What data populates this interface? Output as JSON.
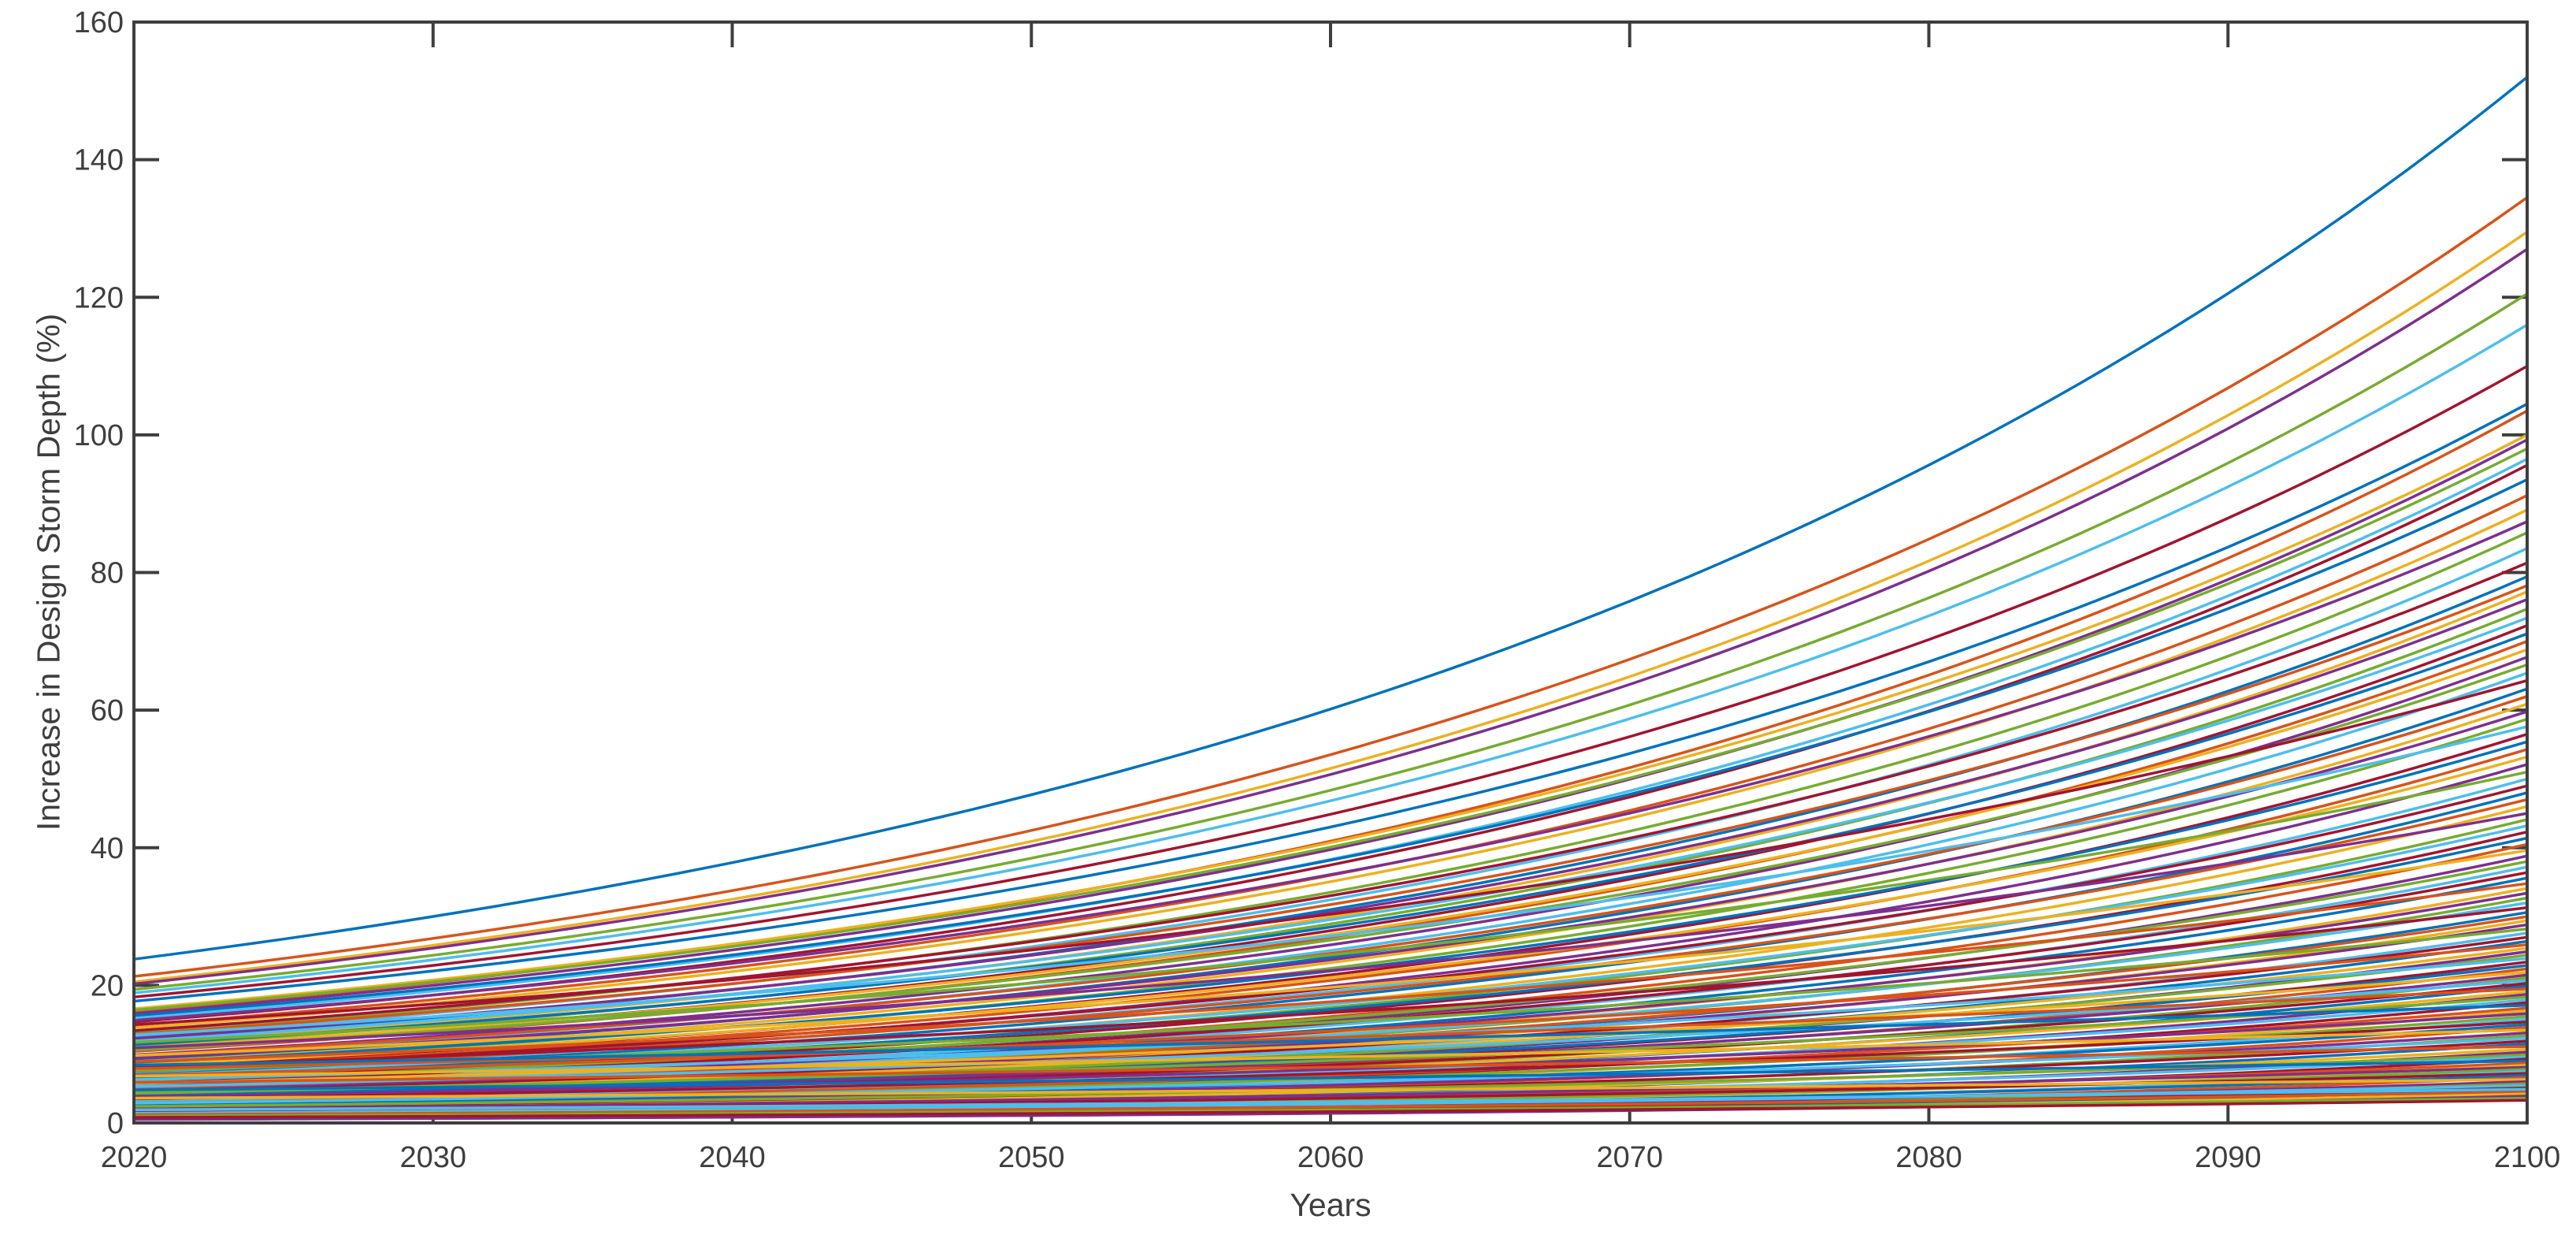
{
  "page": {
    "background": "#ffffff"
  },
  "chart_data": {
    "type": "line",
    "title": "",
    "xlabel": "Years",
    "ylabel": "Increase in Design Storm Depth (%)",
    "xlim": [
      2020,
      2100
    ],
    "ylim": [
      0,
      160
    ],
    "xticks": [
      2020,
      2030,
      2040,
      2050,
      2060,
      2070,
      2080,
      2090,
      2100
    ],
    "yticks": [
      0,
      20,
      40,
      60,
      80,
      100,
      120,
      140,
      160
    ],
    "grid": false,
    "legend": "none",
    "axis_color": "#3e3e3e",
    "tick_label_color": "#3e3e3e",
    "tick_direction": "in",
    "box": true,
    "palette": [
      "#0072BD",
      "#D95319",
      "#EDB120",
      "#7E2F8E",
      "#77AC30",
      "#4DBEEE",
      "#A2142F"
    ],
    "color_rule": "series cycle through palette in order",
    "line_model": "exponential growth interpolated between value at 2020 and value at 2100",
    "series_format": [
      "y2020",
      "y2100"
    ],
    "series": [
      [
        23.8,
        152.0
      ],
      [
        21.3,
        134.5
      ],
      [
        20.5,
        129.5
      ],
      [
        20.2,
        127.0
      ],
      [
        19.4,
        120.5
      ],
      [
        18.9,
        116.0
      ],
      [
        18.3,
        110.0
      ],
      [
        17.7,
        104.5
      ],
      [
        16.2,
        103.5
      ],
      [
        16.6,
        100.0
      ],
      [
        15.9,
        99.3
      ],
      [
        16.4,
        98.0
      ],
      [
        15.2,
        96.5
      ],
      [
        14.7,
        95.6
      ],
      [
        15.6,
        93.5
      ],
      [
        14.2,
        91.2
      ],
      [
        13.8,
        89.1
      ],
      [
        14.9,
        87.4
      ],
      [
        13.1,
        85.8
      ],
      [
        12.6,
        83.5
      ],
      [
        13.4,
        81.4
      ],
      [
        12.1,
        79.4
      ],
      [
        12.9,
        78.1
      ],
      [
        11.6,
        77.2
      ],
      [
        12.3,
        76.1
      ],
      [
        11.2,
        74.7
      ],
      [
        11.9,
        73.4
      ],
      [
        10.8,
        72.3
      ],
      [
        11.4,
        71.1
      ],
      [
        10.4,
        70.0
      ],
      [
        10.9,
        68.8
      ],
      [
        9.9,
        67.7
      ],
      [
        10.6,
        66.6
      ],
      [
        9.6,
        65.4
      ],
      [
        14.3,
        64.3
      ],
      [
        9.2,
        63.1
      ],
      [
        9.8,
        62.0
      ],
      [
        8.9,
        60.9
      ],
      [
        9.4,
        59.8
      ],
      [
        8.6,
        58.7
      ],
      [
        12.8,
        57.6
      ],
      [
        8.2,
        56.5
      ],
      [
        8.8,
        55.4
      ],
      [
        7.9,
        54.3
      ],
      [
        8.4,
        53.2
      ],
      [
        7.6,
        52.1
      ],
      [
        11.7,
        51.0
      ],
      [
        7.3,
        50.0
      ],
      [
        7.8,
        49.0
      ],
      [
        7.0,
        48.0
      ],
      [
        7.5,
        47.0
      ],
      [
        6.7,
        46.0
      ],
      [
        10.9,
        45.0
      ],
      [
        6.4,
        44.1
      ],
      [
        6.9,
        43.2
      ],
      [
        6.2,
        42.3
      ],
      [
        6.6,
        41.4
      ],
      [
        5.9,
        40.5
      ],
      [
        9.8,
        39.6
      ],
      [
        5.7,
        38.8
      ],
      [
        6.1,
        38.0
      ],
      [
        5.4,
        37.2
      ],
      [
        5.8,
        36.4
      ],
      [
        5.2,
        35.6
      ],
      [
        8.9,
        34.8
      ],
      [
        5.0,
        34.1
      ],
      [
        5.3,
        33.4
      ],
      [
        4.8,
        32.7
      ],
      [
        5.1,
        32.0
      ],
      [
        8.2,
        31.3
      ],
      [
        4.6,
        30.6
      ],
      [
        4.9,
        30.0
      ],
      [
        4.4,
        29.4
      ],
      [
        4.7,
        28.8
      ],
      [
        7.6,
        28.2
      ],
      [
        4.2,
        27.6
      ],
      [
        4.5,
        27.0
      ],
      [
        4.0,
        26.4
      ],
      [
        6.9,
        25.9
      ],
      [
        4.3,
        25.4
      ],
      [
        3.8,
        24.9
      ],
      [
        4.1,
        24.4
      ],
      [
        6.3,
        23.9
      ],
      [
        3.6,
        23.4
      ],
      [
        3.9,
        22.9
      ],
      [
        3.4,
        22.4
      ],
      [
        5.8,
        21.9
      ],
      [
        3.7,
        21.5
      ],
      [
        3.2,
        21.1
      ],
      [
        5.3,
        20.7
      ],
      [
        3.5,
        20.3
      ],
      [
        3.0,
        19.9
      ],
      [
        7.9,
        19.5
      ],
      [
        3.3,
        19.1
      ],
      [
        2.8,
        18.7
      ],
      [
        4.5,
        18.3
      ],
      [
        3.1,
        17.9
      ],
      [
        2.6,
        17.5
      ],
      [
        8.4,
        17.1
      ],
      [
        2.9,
        16.7
      ],
      [
        2.4,
        16.3
      ],
      [
        3.8,
        15.9
      ],
      [
        2.7,
        15.5
      ],
      [
        2.2,
        15.1
      ],
      [
        3.5,
        14.7
      ],
      [
        2.5,
        14.3
      ],
      [
        2.0,
        13.9
      ],
      [
        6.8,
        13.5
      ],
      [
        2.3,
        13.1
      ],
      [
        1.8,
        12.7
      ],
      [
        2.9,
        12.3
      ],
      [
        2.1,
        11.9
      ],
      [
        1.6,
        11.5
      ],
      [
        5.9,
        11.1
      ],
      [
        1.9,
        10.7
      ],
      [
        1.4,
        10.3
      ],
      [
        2.4,
        9.9
      ],
      [
        1.7,
        9.6
      ],
      [
        1.2,
        9.3
      ],
      [
        4.8,
        9.0
      ],
      [
        1.5,
        8.7
      ],
      [
        1.0,
        8.4
      ],
      [
        2.0,
        8.1
      ],
      [
        1.3,
        7.8
      ],
      [
        0.9,
        7.5
      ],
      [
        1.8,
        7.2
      ],
      [
        1.1,
        6.9
      ],
      [
        0.8,
        6.6
      ],
      [
        3.6,
        6.3
      ],
      [
        0.9,
        6.0
      ],
      [
        0.7,
        5.7
      ],
      [
        1.4,
        5.4
      ],
      [
        0.8,
        5.1
      ],
      [
        0.6,
        4.8
      ],
      [
        1.2,
        4.5
      ],
      [
        0.7,
        4.2
      ],
      [
        0.5,
        3.9
      ],
      [
        1.0,
        3.6
      ],
      [
        1.9,
        4.9
      ],
      [
        0.8,
        3.3
      ]
    ]
  }
}
